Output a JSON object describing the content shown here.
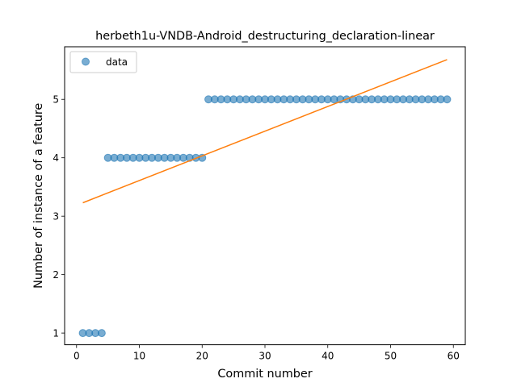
{
  "chart_data": {
    "type": "scatter",
    "title": "herbeth1u-VNDB-Android_destructuring_declaration-linear",
    "xlabel": "Commit number",
    "ylabel": "Number of instance of a feature",
    "xlim": [
      -1.9,
      61.9
    ],
    "ylim": [
      0.8,
      5.9
    ],
    "xticks": [
      0,
      10,
      20,
      30,
      40,
      50,
      60
    ],
    "yticks": [
      1,
      2,
      3,
      4,
      5
    ],
    "grid": false,
    "legend_position": "upper-left",
    "series": [
      {
        "name": "data",
        "kind": "scatter",
        "color": "#1f77b4",
        "x": [
          1,
          2,
          3,
          4,
          5,
          6,
          7,
          8,
          9,
          10,
          11,
          12,
          13,
          14,
          15,
          16,
          17,
          18,
          19,
          20,
          21,
          22,
          23,
          24,
          25,
          26,
          27,
          28,
          29,
          30,
          31,
          32,
          33,
          34,
          35,
          36,
          37,
          38,
          39,
          40,
          41,
          42,
          43,
          44,
          45,
          46,
          47,
          48,
          49,
          50,
          51,
          52,
          53,
          54,
          55,
          56,
          57,
          58,
          59
        ],
        "y": [
          1,
          1,
          1,
          1,
          4,
          4,
          4,
          4,
          4,
          4,
          4,
          4,
          4,
          4,
          4,
          4,
          4,
          4,
          4,
          4,
          5,
          5,
          5,
          5,
          5,
          5,
          5,
          5,
          5,
          5,
          5,
          5,
          5,
          5,
          5,
          5,
          5,
          5,
          5,
          5,
          5,
          5,
          5,
          5,
          5,
          5,
          5,
          5,
          5,
          5,
          5,
          5,
          5,
          5,
          5,
          5,
          5,
          5,
          5
        ]
      },
      {
        "name": "linear fit",
        "kind": "line",
        "color": "#ff7f0e",
        "x": [
          1,
          59
        ],
        "y": [
          3.23,
          5.68
        ]
      }
    ]
  }
}
